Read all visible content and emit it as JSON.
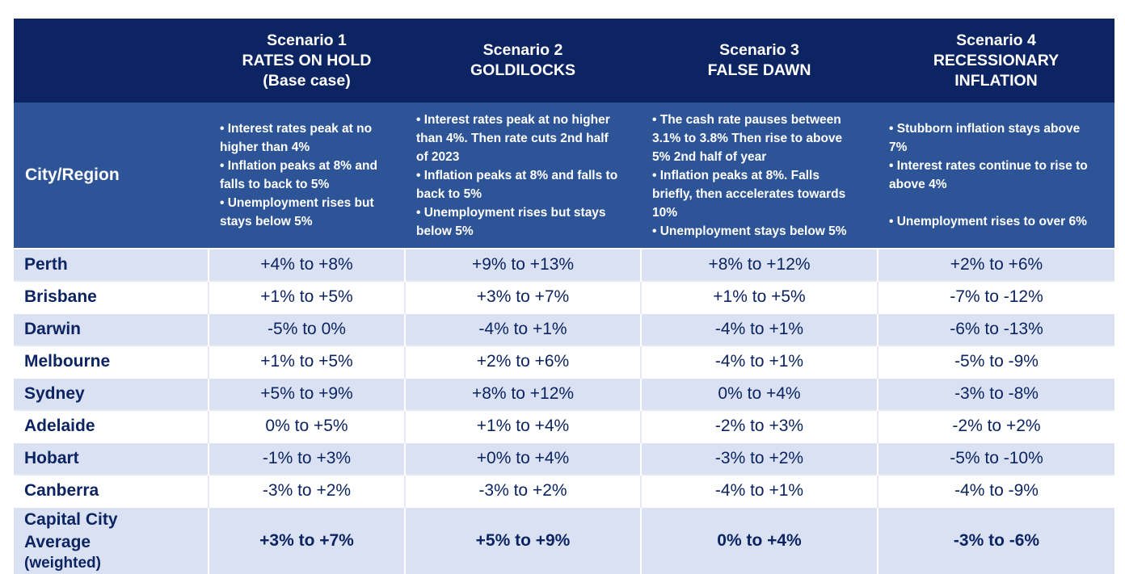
{
  "header": {
    "city_header": "City/Region",
    "scenarios": [
      {
        "title": "Scenario 1",
        "name": "RATES ON HOLD",
        "extra": "(Base case)",
        "description": "• Interest rates peak at no\nhigher than 4%\n• Inflation peaks at 8% and\nfalls to back to 5%\n• Unemployment rises but\nstays below 5%"
      },
      {
        "title": "Scenario 2",
        "name": "GOLDILOCKS",
        "extra": "",
        "description": "• Interest rates peak at no higher\nthan 4%. Then rate cuts 2nd half\nof 2023\n• Inflation peaks at 8% and falls to\nback to 5%\n• Unemployment rises but stays\nbelow 5%"
      },
      {
        "title": "Scenario 3",
        "name": "FALSE DAWN",
        "extra": "",
        "description": "• The cash rate pauses between\n3.1% to 3.8% Then rise to above\n5% 2nd half of year\n• Inflation peaks at 8%. Falls\nbriefly, then accelerates towards\n10%\n• Unemployment stays below 5%"
      },
      {
        "title": "Scenario 4",
        "name": "RECESSIONARY",
        "extra": "INFLATION",
        "description": "• Stubborn inflation stays above\n7%\n• Interest rates continue to rise to\nabove 4%\n\n• Unemployment rises to over 6%"
      }
    ]
  },
  "rows": [
    {
      "city": "Perth",
      "values": [
        "+4% to +8%",
        "+9% to +13%",
        "+8% to +12%",
        "+2% to +6%"
      ]
    },
    {
      "city": "Brisbane",
      "values": [
        "+1% to +5%",
        "+3% to +7%",
        "+1% to +5%",
        "-7% to -12%"
      ]
    },
    {
      "city": "Darwin",
      "values": [
        "-5% to 0%",
        "-4% to +1%",
        "-4% to +1%",
        "-6% to -13%"
      ]
    },
    {
      "city": "Melbourne",
      "values": [
        "+1% to +5%",
        "+2% to +6%",
        "-4% to +1%",
        "-5% to -9%"
      ]
    },
    {
      "city": "Sydney",
      "values": [
        "+5% to +9%",
        "+8% to +12%",
        "0% to +4%",
        "-3% to -8%"
      ]
    },
    {
      "city": "Adelaide",
      "values": [
        "0% to +5%",
        "+1% to +4%",
        "-2% to +3%",
        "-2% to +2%"
      ]
    },
    {
      "city": "Hobart",
      "values": [
        "-1% to +3%",
        "+0% to +4%",
        "-3% to +2%",
        "-5% to -10%"
      ]
    },
    {
      "city": "Canberra",
      "values": [
        "-3% to +2%",
        "-3% to +2%",
        "-4% to +1%",
        "-4% to -9%"
      ]
    }
  ],
  "average": {
    "line1": "Capital City",
    "line2": "Average",
    "line3": "(weighted)",
    "values": [
      "+3% to +7%",
      "+5% to +9%",
      "0% to +4%",
      "-3% to -6%"
    ]
  },
  "colors": {
    "header_navy": "#0c2461",
    "subheader_blue": "#2d5496",
    "row_shade": "#d9e1f2",
    "text_navy": "#0c2461"
  }
}
